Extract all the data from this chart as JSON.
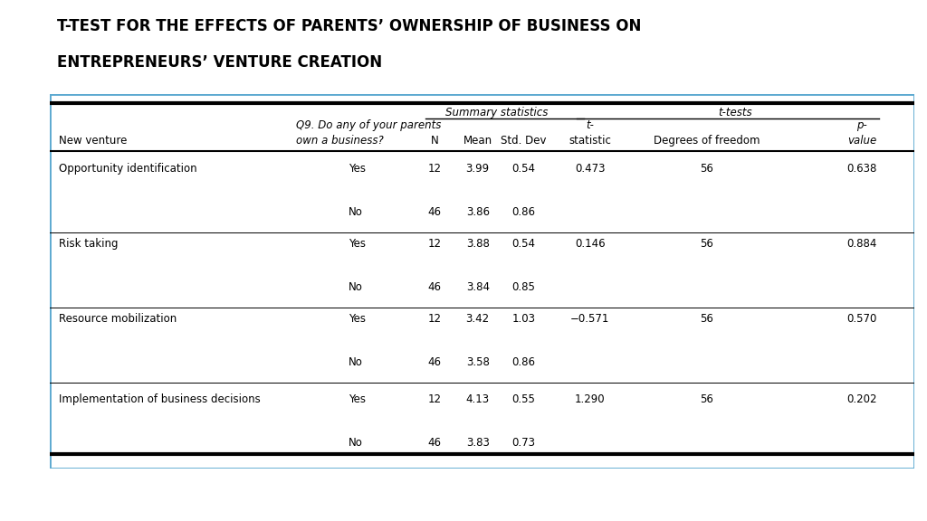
{
  "title_line1": "T-TEST FOR THE EFFECTS OF PARENTS’ OWNERSHIP OF BUSINESS ON",
  "title_line2": "ENTREPRENEURS’ VENTURE CREATION",
  "rows": [
    {
      "venture": "Opportunity identification",
      "yn": [
        "Yes",
        "No"
      ],
      "N": [
        "12",
        "46"
      ],
      "mean": [
        "3.99",
        "3.86"
      ],
      "std_dev": [
        "0.54",
        "0.86"
      ],
      "t_stat": "0.473",
      "dof": "56",
      "p_val": "0.638"
    },
    {
      "venture": "Risk taking",
      "yn": [
        "Yes",
        "No"
      ],
      "N": [
        "12",
        "46"
      ],
      "mean": [
        "3.88",
        "3.84"
      ],
      "std_dev": [
        "0.54",
        "0.85"
      ],
      "t_stat": "0.146",
      "dof": "56",
      "p_val": "0.884"
    },
    {
      "venture": "Resource mobilization",
      "yn": [
        "Yes",
        "No"
      ],
      "N": [
        "12",
        "46"
      ],
      "mean": [
        "3.42",
        "3.58"
      ],
      "std_dev": [
        "1.03",
        "0.86"
      ],
      "t_stat": "−0.571",
      "dof": "56",
      "p_val": "0.570"
    },
    {
      "venture": "Implementation of business decisions",
      "yn": [
        "Yes",
        "No"
      ],
      "N": [
        "12",
        "46"
      ],
      "mean": [
        "4.13",
        "3.83"
      ],
      "std_dev": [
        "0.55",
        "0.73"
      ],
      "t_stat": "1.290",
      "dof": "56",
      "p_val": "0.202"
    }
  ],
  "bg_color": "#ffffff",
  "border_color": "#5aa8d0",
  "text_color": "#000000"
}
